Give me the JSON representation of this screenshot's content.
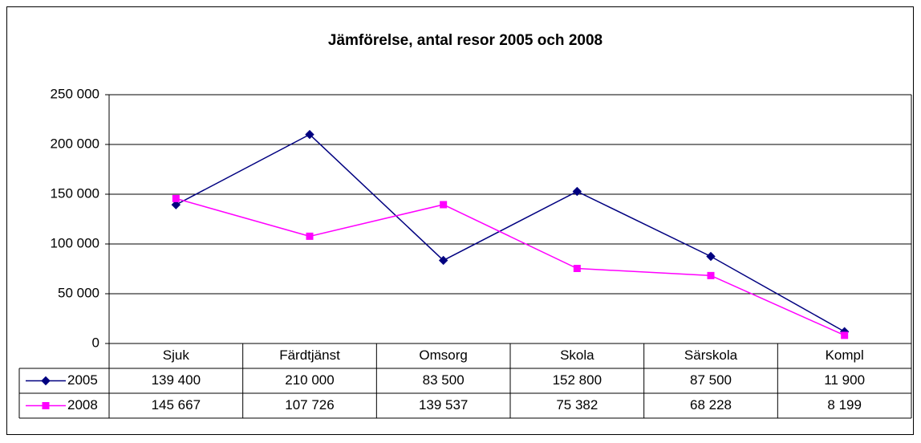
{
  "chart_data": {
    "type": "line",
    "title": "Jämförelse, antal resor 2005 och 2008",
    "categories": [
      "Sjuk",
      "Färdtjänst",
      "Omsorg",
      "Skola",
      "Särskola",
      "Kompl"
    ],
    "series": [
      {
        "name": "2005",
        "color": "#000080",
        "marker": "diamond",
        "values": [
          139400,
          210000,
          83500,
          152800,
          87500,
          11900
        ],
        "value_labels": [
          "139 400",
          "210 000",
          "83 500",
          "152 800",
          "87 500",
          "11 900"
        ]
      },
      {
        "name": "2008",
        "color": "#ff00ff",
        "marker": "square",
        "values": [
          145667,
          107726,
          139537,
          75382,
          68228,
          8199
        ],
        "value_labels": [
          "145 667",
          "107 726",
          "139 537",
          "75 382",
          "68 228",
          "8 199"
        ]
      }
    ],
    "ylim": [
      0,
      250000
    ],
    "yticks": [
      0,
      {
        "value": 50000,
        "label": "50 000"
      },
      {
        "value": 100000,
        "label": "100 000"
      },
      {
        "value": 150000,
        "label": "150 000"
      },
      {
        "value": 200000,
        "label": "200 000"
      },
      {
        "value": 250000,
        "label": "250 000"
      }
    ],
    "grid": true,
    "data_table": true
  }
}
